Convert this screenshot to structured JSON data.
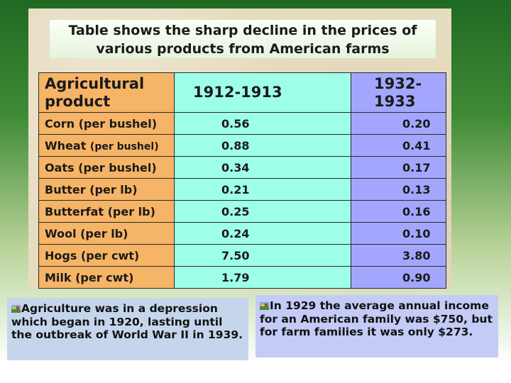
{
  "title_line1": "Table shows the sharp decline in the prices of",
  "title_line2": "various products from American farms",
  "table": {
    "headers": [
      "Agricultural product",
      "1912-1913",
      "1932-1933"
    ],
    "rows": [
      {
        "product": "Corn (per bushel)",
        "y1912": "0.56",
        "y1932": "0.20"
      },
      {
        "product": "Wheat",
        "unit": "(per bushel)",
        "y1912": "0.88",
        "y1932": "0.41"
      },
      {
        "product": "Oats (per bushel)",
        "y1912": "0.34",
        "y1932": "0.17"
      },
      {
        "product": "Butter (per lb)",
        "y1912": "0.21",
        "y1932": "0.13"
      },
      {
        "product": "Butterfat (per lb)",
        "y1912": "0.25",
        "y1932": "0.16"
      },
      {
        "product": "Wool (per lb)",
        "y1912": "0.24",
        "y1932": "0.10"
      },
      {
        "product": "Hogs (per cwt)",
        "y1912": "7.50",
        "y1932": "3.80"
      },
      {
        "product": "Milk (per cwt)",
        "y1912": "1.79",
        "y1932": "0.90"
      }
    ]
  },
  "notes": {
    "left": "Agriculture was in a depression which began in 1920, lasting until the outbreak of World War II in 1939.",
    "right": "In 1929 the average annual income for an American family was $750, but for farm families it was only $273."
  },
  "colors": {
    "product_col": "#f6b466",
    "col_1912": "#9effe9",
    "col_1932": "#a3a6fc"
  }
}
